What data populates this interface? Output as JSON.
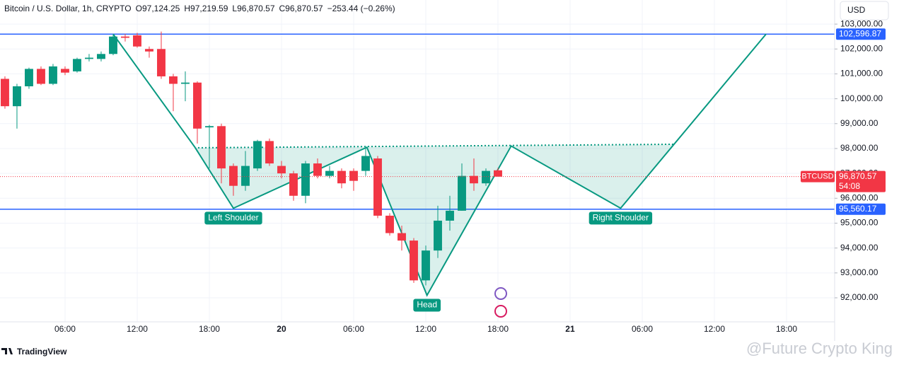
{
  "chart_data": {
    "type": "candlestick",
    "legend": {
      "symbol": "Bitcoin / U.S. Dollar, 1h, CRYPTO",
      "items": [
        {
          "key": "O",
          "value": "97,124.25"
        },
        {
          "key": "H",
          "value": "97,219.59"
        },
        {
          "key": "L",
          "value": "96,870.57"
        },
        {
          "key": "C",
          "value": "96,870.57"
        }
      ],
      "change": "−253.44 (−0.26%)"
    },
    "currency": "USD",
    "x": [
      1,
      2,
      3,
      4,
      5,
      6,
      7,
      8,
      9,
      10,
      11,
      12,
      13,
      14,
      15,
      16,
      17,
      18,
      19,
      20,
      21,
      22,
      23,
      24,
      25,
      26,
      27,
      28,
      29,
      30,
      31,
      32,
      33,
      34,
      35,
      36,
      37,
      38,
      39,
      40,
      41,
      42
    ],
    "open": [
      100800,
      99700,
      100500,
      101200,
      100600,
      101200,
      101100,
      101600,
      101600,
      101800,
      102500,
      102550,
      102000,
      102000,
      100900,
      100600,
      100650,
      98850,
      98900,
      97300,
      96500,
      97200,
      98300,
      97300,
      97000,
      96100,
      97400,
      96900,
      97100,
      97100,
      97100,
      97600,
      95300,
      94600,
      94300,
      92700,
      93900,
      95100,
      95500,
      96900,
      96600,
      97124.25
    ],
    "high": [
      100900,
      100600,
      101250,
      101300,
      101400,
      101300,
      101650,
      101800,
      101900,
      102600,
      102600,
      102650,
      102100,
      102700,
      101000,
      101100,
      100700,
      98950,
      99000,
      97400,
      97900,
      98350,
      98400,
      97500,
      97100,
      97500,
      97600,
      97300,
      97200,
      97200,
      98000,
      97700,
      95400,
      94900,
      94400,
      94100,
      95700,
      96100,
      97400,
      97600,
      97200,
      97219.59
    ],
    "low": [
      99600,
      98800,
      100400,
      100550,
      100550,
      100950,
      101050,
      101500,
      101500,
      101750,
      102300,
      102050,
      101650,
      100800,
      99500,
      99900,
      98200,
      97200,
      96600,
      96100,
      96300,
      97100,
      97300,
      96800,
      95900,
      95800,
      96800,
      96800,
      96400,
      96300,
      96900,
      95200,
      94500,
      93900,
      92600,
      92500,
      93600,
      94700,
      95500,
      96300,
      96500,
      96870.57
    ],
    "close": [
      99700,
      100500,
      101200,
      100600,
      101300,
      101050,
      101600,
      101650,
      101800,
      102500,
      102450,
      102100,
      101900,
      100900,
      100600,
      100650,
      98800,
      98900,
      97200,
      96500,
      97300,
      98300,
      97400,
      97000,
      96100,
      97400,
      96900,
      97100,
      96600,
      96700,
      97700,
      95300,
      94600,
      94300,
      92700,
      93900,
      95100,
      95500,
      96900,
      96600,
      97100,
      96870.57
    ],
    "up_color": "#089981",
    "down_color": "#f23645",
    "xlim": [
      0.59,
      70
    ],
    "xticks": [
      {
        "value": 6,
        "label": "06:00"
      },
      {
        "value": 12,
        "label": "12:00"
      },
      {
        "value": 18,
        "label": "18:00"
      },
      {
        "value": 24,
        "label": "20"
      },
      {
        "value": 30,
        "label": "06:00"
      },
      {
        "value": 36,
        "label": "12:00"
      },
      {
        "value": 42,
        "label": "18:00"
      },
      {
        "value": 48,
        "label": "21"
      },
      {
        "value": 54,
        "label": "06:00"
      },
      {
        "value": 60,
        "label": "12:00"
      },
      {
        "value": 66,
        "label": "18:00"
      }
    ],
    "ylim": [
      91033,
      103969
    ],
    "yticks": [
      {
        "value": 92000,
        "label": "92,000.00"
      },
      {
        "value": 93000,
        "label": "93,000.00"
      },
      {
        "value": 94000,
        "label": "94,000.00"
      },
      {
        "value": 95000,
        "label": "95,000.00"
      },
      {
        "value": 96000,
        "label": "96,000.00"
      },
      {
        "value": 97000,
        "label": "97,000.00"
      },
      {
        "value": 98000,
        "label": "98,000.00"
      },
      {
        "value": 99000,
        "label": "99,000.00"
      },
      {
        "value": 100000,
        "label": "100,000.00"
      },
      {
        "value": 101000,
        "label": "101,000.00"
      },
      {
        "value": 102000,
        "label": "102,000.00"
      },
      {
        "value": 103000,
        "label": "103,000.00"
      }
    ],
    "hlines": [
      {
        "value": 102596.87,
        "label": "102,596.87",
        "color": "#2962ff"
      },
      {
        "value": 95560.17,
        "label": "95,560.17",
        "color": "#2962ff"
      }
    ],
    "last_price": {
      "name": "BTCUSD",
      "value": 96870.57,
      "label": "96,870.57",
      "countdown": "54:08",
      "color": "#f23645"
    },
    "pattern": {
      "x": [
        10.0,
        16.8,
        20.0,
        31.1,
        36.1,
        43.1,
        52.2,
        64.3
      ],
      "y": [
        102600,
        98050,
        95600,
        98050,
        92100,
        98100,
        95600,
        102600
      ],
      "neckline": {
        "x": [
          17.06,
          56.6
        ],
        "y": [
          98030,
          98170
        ]
      },
      "labels": [
        "Left Shoulder",
        "Head",
        "Right Shoulder"
      ],
      "color": "#089981"
    },
    "brand": "TradingView",
    "watermark": "@Future Crypto King"
  }
}
